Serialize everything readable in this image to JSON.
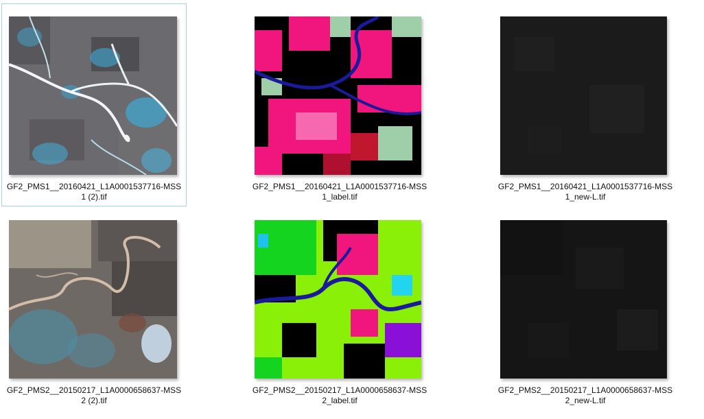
{
  "files": [
    {
      "name_line1": "GF2_PMS1__20160421_L1A0001537716-MSS",
      "name_line2": "1 (2).tif",
      "thumbnail": "satellite-image-river-town",
      "selected": true
    },
    {
      "name_line1": "GF2_PMS1__20160421_L1A0001537716-MSS",
      "name_line2": "1_label.tif",
      "thumbnail": "label-map-magenta"
    },
    {
      "name_line1": "GF2_PMS1__20160421_L1A0001537716-MSS",
      "name_line2": "1_new-L.tif",
      "thumbnail": "dark-image"
    },
    {
      "name_line1": "GF2_PMS2__20150217_L1A0000658637-MSS",
      "name_line2": "2 (2).tif",
      "thumbnail": "satellite-image-meandering-river"
    },
    {
      "name_line1": "GF2_PMS2__20150217_L1A0000658637-MSS",
      "name_line2": "2_label.tif",
      "thumbnail": "label-map-green"
    },
    {
      "name_line1": "GF2_PMS2__20150217_L1A0000658637-MSS",
      "name_line2": "2_new-L.tif",
      "thumbnail": "dark-image"
    }
  ],
  "colors": {
    "selection_border": "#9fd6ea",
    "label_magenta": "#f0167e",
    "label_green": "#8af007",
    "river_blue": "#1a1a9a",
    "dark_thumb": "#1b1b1b"
  }
}
